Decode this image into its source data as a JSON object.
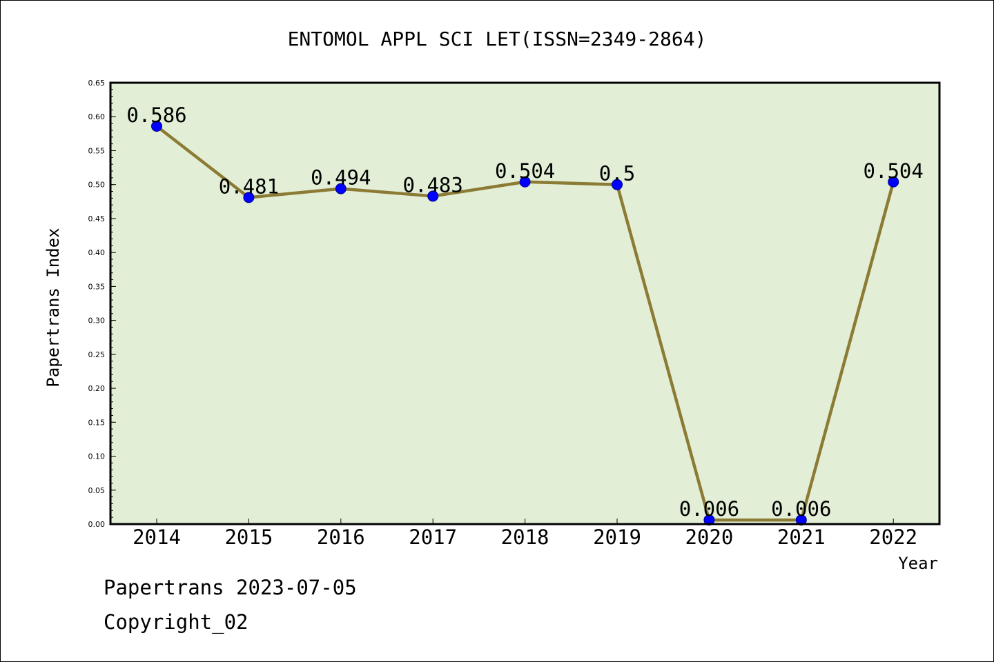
{
  "chart_data": {
    "type": "line",
    "title": "ENTOMOL APPL SCI LET(ISSN=2349-2864)",
    "xlabel": "Year",
    "ylabel": "Papertrans Index",
    "categories": [
      "2014",
      "2015",
      "2016",
      "2017",
      "2018",
      "2019",
      "2020",
      "2021",
      "2022"
    ],
    "series": [
      {
        "values": [
          0.586,
          0.481,
          0.494,
          0.483,
          0.504,
          0.5,
          0.006,
          0.006,
          0.504
        ],
        "data_labels": [
          "0.586",
          "0.481",
          "0.494",
          "0.483",
          "0.504",
          "0.5",
          "0.006",
          "0.006",
          "0.504"
        ]
      }
    ],
    "ylim": [
      0,
      0.65
    ],
    "yticks": [
      "0.00",
      "0.05",
      "0.10",
      "0.15",
      "0.20",
      "0.25",
      "0.30",
      "0.35",
      "0.40",
      "0.45",
      "0.50",
      "0.55",
      "0.60",
      "0.65"
    ],
    "grid": false,
    "colors": {
      "plot_background": "#e2efd6",
      "line": "#8b7b35",
      "marker": "#0000ff"
    }
  },
  "footer": {
    "date_line": "Papertrans 2023-07-05",
    "copyright": "Copyright_02"
  }
}
